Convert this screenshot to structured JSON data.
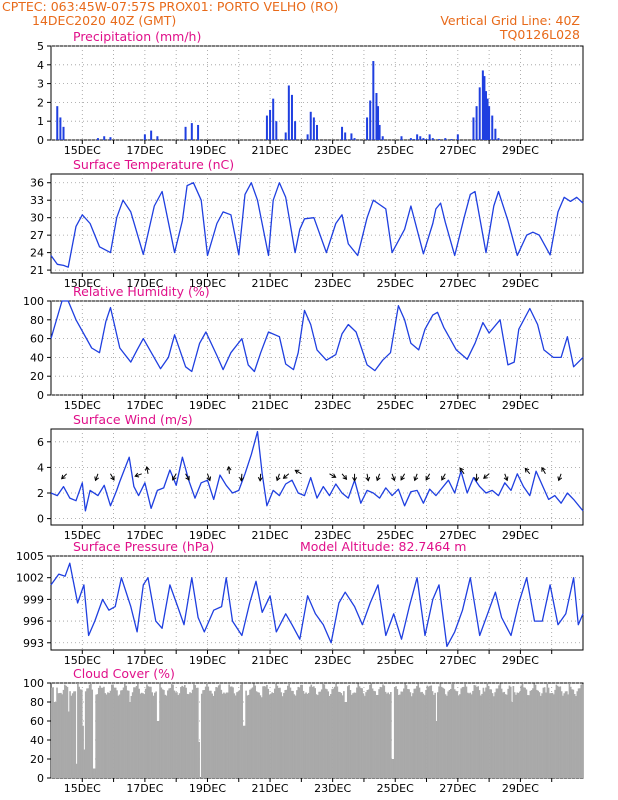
{
  "header": {
    "line1_left": "CPTEC:  063:45W-07:57S   PROX01: PORTO VELHO (RO)",
    "line2_left": "14DEC2020 40Z (GMT)",
    "line2_right": "Vertical Grid Line: 40Z",
    "line3_right": "TQ0126L028"
  },
  "colors": {
    "header": "#e86a1a",
    "title": "#e0108a",
    "series": "#1f3fe0",
    "cloud": "#a9a9a9",
    "grid": "#9a9a9a"
  },
  "x_ticks": [
    "15DEC",
    "17DEC",
    "19DEC",
    "21DEC",
    "23DEC",
    "25DEC",
    "27DEC",
    "29DEC"
  ],
  "panels": [
    {
      "id": "precip",
      "title": "Precipitation  (mm/h)",
      "yticks": [
        "0",
        "1",
        "2",
        "3",
        "4",
        "5"
      ]
    },
    {
      "id": "temp",
      "title": "Surface Temperature  (nC)",
      "yticks": [
        "21",
        "24",
        "27",
        "30",
        "33",
        "36"
      ]
    },
    {
      "id": "rh",
      "title": "Relative Humidity  (%)",
      "yticks": [
        "0",
        "20",
        "40",
        "60",
        "80",
        "100"
      ]
    },
    {
      "id": "wind",
      "title": "Surface Wind  (m/s)",
      "yticks": [
        "0",
        "2",
        "4",
        "6"
      ]
    },
    {
      "id": "press",
      "title": "Surface Pressure  (hPa)",
      "extra": "Model Altitude:  82.7464  m",
      "yticks": [
        "993",
        "996",
        "999",
        "1002",
        "1005"
      ]
    },
    {
      "id": "cloud",
      "title": "Cloud Cover  (%)",
      "yticks": [
        "0",
        "20",
        "40",
        "60",
        "80",
        "100"
      ]
    }
  ],
  "chart_data": [
    {
      "type": "bar",
      "title": "Precipitation  (mm/h)",
      "ylim": [
        0,
        5
      ],
      "x_unit": "days since 14DEC 00Z",
      "x": [
        0.2,
        0.3,
        0.4,
        1.5,
        1.7,
        1.9,
        3.0,
        3.2,
        3.4,
        4.3,
        4.5,
        4.7,
        6.9,
        7.0,
        7.1,
        7.2,
        7.5,
        7.6,
        7.7,
        7.8,
        8.2,
        8.3,
        8.4,
        8.5,
        9.3,
        9.4,
        9.6,
        9.7,
        10.1,
        10.2,
        10.3,
        10.4,
        10.45,
        10.5,
        10.6,
        11.2,
        11.5,
        11.6,
        11.7,
        11.8,
        11.9,
        12.0,
        12.1,
        12.2,
        12.4,
        12.6,
        12.8,
        13.0,
        13.5,
        13.6,
        13.7,
        13.8,
        13.85,
        13.9,
        13.95,
        14.0,
        14.1,
        14.2,
        14.3
      ],
      "values": [
        1.8,
        1.2,
        0.7,
        0.1,
        0.2,
        0.15,
        0.3,
        0.5,
        0.2,
        0.7,
        0.9,
        0.8,
        1.3,
        1.6,
        2.2,
        1.0,
        0.4,
        2.9,
        2.4,
        1.0,
        0.3,
        1.5,
        1.2,
        0.8,
        0.7,
        0.4,
        0.35,
        0.1,
        1.2,
        2.1,
        4.2,
        2.5,
        1.8,
        0.8,
        0.2,
        0.2,
        0.1,
        0.05,
        0.3,
        0.2,
        0.1,
        0.05,
        0.3,
        0.1,
        0.05,
        0.1,
        0.05,
        0.3,
        1.2,
        1.8,
        2.8,
        3.7,
        3.4,
        2.6,
        2.2,
        1.8,
        1.3,
        0.6,
        0.1
      ]
    },
    {
      "type": "line",
      "title": "Surface Temperature  (nC)",
      "ylim": [
        20.5,
        37.5
      ],
      "x_unit": "days since 14DEC 00Z",
      "x": [
        0,
        0.2,
        0.4,
        0.55,
        0.8,
        1.0,
        1.25,
        1.55,
        1.9,
        2.1,
        2.3,
        2.55,
        2.95,
        3.3,
        3.55,
        3.95,
        4.2,
        4.35,
        4.55,
        4.8,
        5.0,
        5.3,
        5.5,
        5.75,
        6.0,
        6.2,
        6.4,
        6.6,
        6.95,
        7.1,
        7.3,
        7.5,
        7.8,
        7.95,
        8.1,
        8.4,
        8.8,
        9.1,
        9.3,
        9.5,
        9.8,
        10.1,
        10.3,
        10.7,
        10.9,
        11.3,
        11.5,
        11.9,
        12.2,
        12.3,
        12.45,
        12.6,
        12.9,
        13.2,
        13.4,
        13.55,
        13.9,
        14.15,
        14.3,
        14.6,
        14.9,
        15.2,
        15.4,
        15.6,
        15.95,
        16.2,
        16.4,
        16.6,
        16.8,
        17.0
      ],
      "values": [
        23.5,
        22,
        21.8,
        21.5,
        28.5,
        30.5,
        29,
        25,
        24,
        30,
        33,
        31,
        23.7,
        32,
        34.5,
        24,
        29.5,
        35.5,
        36,
        33,
        23.5,
        29,
        31,
        30.5,
        23.6,
        34,
        36,
        33,
        23.5,
        33,
        36,
        33.5,
        24,
        28,
        29.8,
        30,
        24,
        29,
        30.5,
        25.5,
        23.5,
        30,
        33,
        31.5,
        24,
        28,
        32,
        23.8,
        29,
        31.5,
        32.5,
        29.2,
        23.5,
        30,
        34,
        34.5,
        24,
        32,
        34.5,
        29.5,
        23.5,
        27,
        27.5,
        27,
        23.6,
        31,
        33.5,
        32.8,
        33.5,
        32.5
      ]
    },
    {
      "type": "line",
      "title": "Relative Humidity  (%)",
      "ylim": [
        0,
        100
      ],
      "x_unit": "days since 14DEC 00Z",
      "x": [
        0,
        0.35,
        0.55,
        0.8,
        1.3,
        1.55,
        1.75,
        1.9,
        2.2,
        2.55,
        2.75,
        2.95,
        3.5,
        3.75,
        3.95,
        4.3,
        4.5,
        4.75,
        4.95,
        5.3,
        5.5,
        5.75,
        6.1,
        6.3,
        6.5,
        6.7,
        6.95,
        7.3,
        7.5,
        7.75,
        7.9,
        8.1,
        8.3,
        8.5,
        8.8,
        9.1,
        9.3,
        9.5,
        9.75,
        10.1,
        10.35,
        10.6,
        10.85,
        11.1,
        11.3,
        11.5,
        11.75,
        11.95,
        12.2,
        12.35,
        12.55,
        12.75,
        12.95,
        13.3,
        13.55,
        13.8,
        14.0,
        14.35,
        14.6,
        14.8,
        14.95,
        15.3,
        15.55,
        15.75,
        16.05,
        16.3,
        16.5,
        16.7,
        17.0
      ],
      "values": [
        60,
        100,
        100,
        80,
        50,
        45,
        78,
        93,
        50,
        35,
        48,
        60,
        28,
        40,
        64,
        30,
        25,
        55,
        67,
        42,
        27,
        45,
        60,
        32,
        25,
        45,
        67,
        62,
        33,
        27,
        45,
        90,
        75,
        48,
        37,
        43,
        65,
        75,
        67,
        32,
        26,
        37,
        45,
        95,
        80,
        55,
        48,
        70,
        85,
        88,
        72,
        60,
        48,
        38,
        55,
        77,
        66,
        80,
        32,
        35,
        70,
        92,
        75,
        48,
        40,
        40,
        62,
        30,
        40
      ]
    },
    {
      "type": "line",
      "title": "Surface Wind  (m/s)",
      "ylim": [
        -0.5,
        7
      ],
      "x_unit": "days since 14DEC 00Z",
      "x": [
        0,
        0.2,
        0.4,
        0.6,
        0.8,
        1.0,
        1.1,
        1.25,
        1.5,
        1.7,
        1.9,
        2.1,
        2.2,
        2.5,
        2.65,
        2.8,
        3.0,
        3.2,
        3.4,
        3.6,
        3.8,
        4.0,
        4.2,
        4.4,
        4.6,
        4.8,
        5.0,
        5.2,
        5.4,
        5.6,
        5.8,
        6.0,
        6.2,
        6.4,
        6.6,
        6.75,
        6.9,
        7.1,
        7.3,
        7.5,
        7.7,
        7.9,
        8.1,
        8.3,
        8.5,
        8.7,
        8.9,
        9.1,
        9.3,
        9.5,
        9.7,
        9.9,
        10.1,
        10.3,
        10.5,
        10.7,
        10.9,
        11.1,
        11.3,
        11.5,
        11.7,
        11.9,
        12.1,
        12.3,
        12.5,
        12.7,
        12.9,
        13.1,
        13.3,
        13.5,
        13.7,
        13.9,
        14.1,
        14.3,
        14.5,
        14.7,
        14.9,
        15.1,
        15.3,
        15.5,
        15.7,
        15.9,
        16.1,
        16.3,
        16.5,
        16.7,
        17.0
      ],
      "values": [
        2.0,
        1.8,
        2.5,
        1.6,
        1.4,
        2.8,
        0.6,
        2.2,
        1.8,
        2.6,
        1.0,
        2.2,
        2.9,
        4.8,
        2.5,
        1.8,
        2.8,
        0.8,
        2.2,
        2.4,
        3.8,
        2.6,
        4.8,
        3.0,
        1.6,
        2.8,
        3.0,
        1.5,
        3.4,
        2.6,
        2.0,
        2.2,
        3.5,
        5.0,
        6.8,
        3.5,
        1.0,
        2.2,
        1.8,
        2.7,
        3.0,
        2.0,
        1.8,
        3.2,
        1.6,
        2.5,
        1.8,
        2.7,
        2.0,
        1.6,
        3.0,
        1.2,
        2.2,
        2.0,
        1.6,
        2.4,
        1.8,
        2.3,
        1.0,
        2.1,
        2.2,
        1.2,
        2.3,
        1.8,
        2.4,
        3.0,
        2.0,
        3.7,
        2.0,
        3.2,
        2.5,
        2.0,
        2.2,
        1.8,
        2.8,
        2.2,
        3.5,
        2.5,
        1.8,
        3.7,
        2.6,
        1.5,
        1.8,
        1.2,
        2.0,
        1.5,
        0.6
      ]
    },
    {
      "type": "line",
      "title": "Surface Pressure  (hPa)",
      "ylim": [
        992,
        1005
      ],
      "x_unit": "days since 14DEC 00Z",
      "x": [
        0,
        0.25,
        0.45,
        0.6,
        0.85,
        1.05,
        1.2,
        1.4,
        1.65,
        1.85,
        2.05,
        2.25,
        2.55,
        2.75,
        2.95,
        3.1,
        3.35,
        3.55,
        3.8,
        4.05,
        4.25,
        4.5,
        4.7,
        4.9,
        5.2,
        5.45,
        5.6,
        5.8,
        6.1,
        6.35,
        6.55,
        6.75,
        7.0,
        7.2,
        7.5,
        7.7,
        7.95,
        8.2,
        8.45,
        8.7,
        8.95,
        9.2,
        9.4,
        9.7,
        9.95,
        10.2,
        10.45,
        10.7,
        10.95,
        11.2,
        11.45,
        11.7,
        11.95,
        12.2,
        12.4,
        12.65,
        12.9,
        13.15,
        13.4,
        13.7,
        13.95,
        14.2,
        14.4,
        14.7,
        14.95,
        15.2,
        15.45,
        15.7,
        15.95,
        16.2,
        16.45,
        16.7,
        16.85,
        17.0
      ],
      "values": [
        1001,
        1002.5,
        1002.2,
        1004,
        998.5,
        1001,
        994,
        996,
        999,
        997.5,
        998,
        1002,
        998,
        994.5,
        1001,
        1002,
        996,
        995,
        1001,
        998,
        995.5,
        1002,
        996.5,
        994.5,
        997.5,
        998,
        1002,
        996,
        994,
        998.5,
        1001.5,
        997.2,
        999.5,
        994.5,
        997,
        995.5,
        993.5,
        999.5,
        997,
        995.5,
        993,
        998.5,
        1000,
        998,
        995.5,
        998.5,
        1001,
        994,
        997,
        993.5,
        998,
        1002,
        994,
        999,
        1001,
        992.5,
        994.5,
        997.5,
        1002,
        994,
        997,
        1000,
        996.5,
        994,
        998.5,
        1002,
        996,
        996,
        1001,
        995.5,
        997,
        1002,
        995.5,
        997
      ]
    },
    {
      "type": "bar",
      "title": "Cloud Cover  (%)",
      "ylim": [
        0,
        100
      ],
      "note": "hourly bars, mostly 90-100%; notable dips",
      "dips": [
        [
          0.1,
          80
        ],
        [
          0.55,
          70
        ],
        [
          0.8,
          15
        ],
        [
          1.0,
          55
        ],
        [
          1.05,
          30
        ],
        [
          1.35,
          10
        ],
        [
          1.6,
          95
        ],
        [
          2.5,
          80
        ],
        [
          3.4,
          60
        ],
        [
          4.7,
          38
        ],
        [
          4.75,
          0
        ],
        [
          5.6,
          90
        ],
        [
          6.15,
          55
        ],
        [
          6.7,
          85
        ],
        [
          7.3,
          95
        ],
        [
          9.4,
          80
        ],
        [
          10.9,
          20
        ],
        [
          12.3,
          60
        ],
        [
          13.8,
          95
        ],
        [
          14.7,
          80
        ],
        [
          15.8,
          90
        ],
        [
          16.5,
          88
        ]
      ]
    }
  ]
}
